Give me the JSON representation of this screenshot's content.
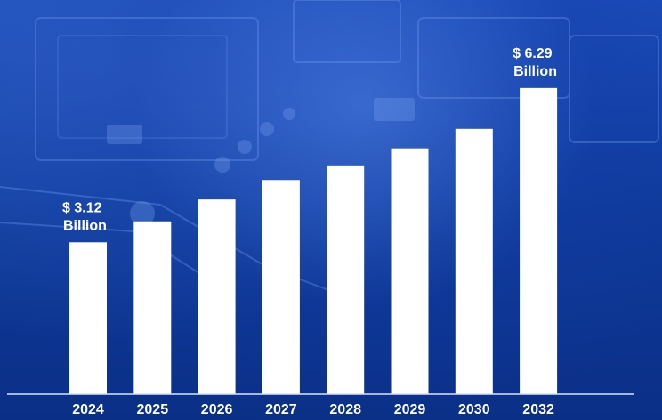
{
  "chart_data": {
    "type": "bar",
    "categories": [
      "2024",
      "2025",
      "2026",
      "2027",
      "2028",
      "2029",
      "2030",
      "2032"
    ],
    "values": [
      3.12,
      3.55,
      4.0,
      4.4,
      4.7,
      5.05,
      5.45,
      6.29
    ],
    "unit": "Billion",
    "ylim": [
      0,
      7.0
    ],
    "grid": false,
    "legend": "none",
    "bar_color": "#ffffff",
    "axis_color": "#d8e2ff",
    "annotations": [
      {
        "category": "2024",
        "line1": "$ 3.12",
        "line2": "Billion"
      },
      {
        "category": "2032",
        "line1": "$ 6.29",
        "line2": "Billion"
      }
    ]
  }
}
